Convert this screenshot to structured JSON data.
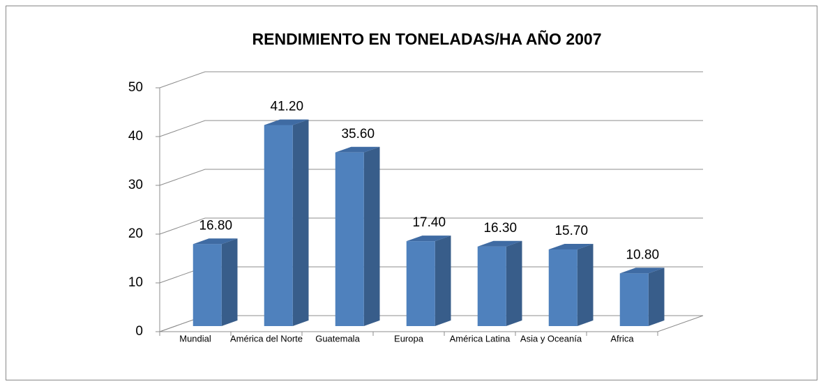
{
  "chart_data": {
    "type": "bar3d",
    "title": "RENDIMIENTO EN TONELADAS/HA AÑO 2007",
    "categories": [
      "Mundial",
      "América del Norte",
      "Guatemala",
      "Europa",
      "América Latina",
      "Asia y Oceanía",
      "Africa"
    ],
    "values": [
      16.8,
      41.2,
      35.6,
      17.4,
      16.3,
      15.7,
      10.8
    ],
    "value_labels": [
      "16.80",
      "41.20",
      "35.60",
      "17.40",
      "16.30",
      "15.70",
      "10.80"
    ],
    "color": "#4f81bd",
    "ylim": [
      0,
      50
    ],
    "yticks": [
      0,
      10,
      20,
      30,
      40,
      50
    ],
    "grid": true
  }
}
